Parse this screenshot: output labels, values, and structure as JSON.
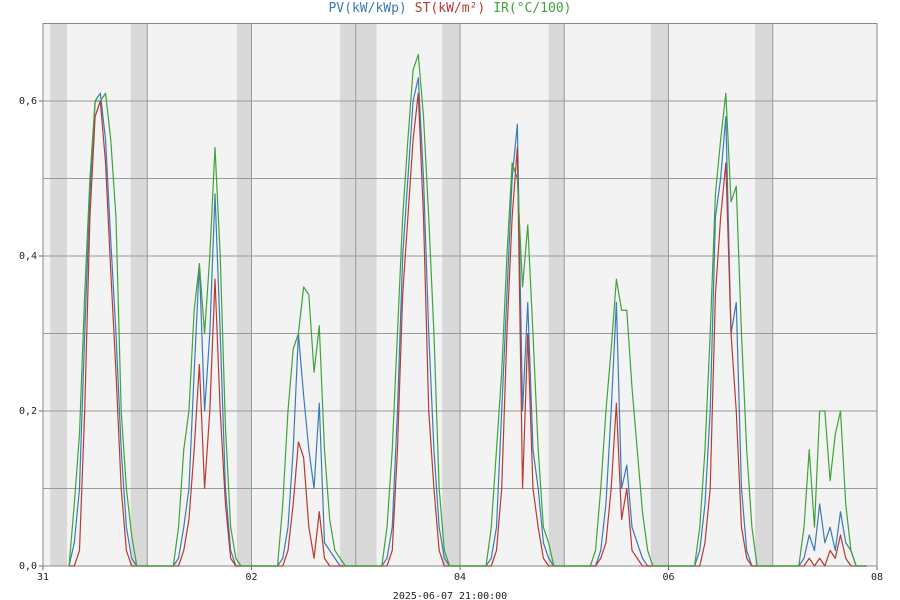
{
  "chart_data": {
    "type": "line",
    "xlabel": "2025-06-07 21:00:00",
    "x": [
      0.25,
      0.3,
      0.35,
      0.4,
      0.45,
      0.5,
      0.55,
      0.6,
      0.65,
      0.7,
      0.75,
      0.8,
      0.85,
      0.9,
      1.25,
      1.3,
      1.35,
      1.4,
      1.45,
      1.5,
      1.55,
      1.6,
      1.65,
      1.7,
      1.75,
      1.8,
      1.85,
      1.9,
      2.25,
      2.3,
      2.35,
      2.4,
      2.45,
      2.5,
      2.55,
      2.6,
      2.65,
      2.7,
      2.75,
      2.8,
      2.85,
      2.9,
      3.25,
      3.3,
      3.35,
      3.4,
      3.45,
      3.5,
      3.55,
      3.6,
      3.65,
      3.7,
      3.75,
      3.8,
      3.85,
      3.9,
      4.25,
      4.3,
      4.35,
      4.4,
      4.45,
      4.5,
      4.55,
      4.6,
      4.65,
      4.7,
      4.75,
      4.8,
      4.85,
      4.9,
      5.25,
      5.3,
      5.35,
      5.4,
      5.45,
      5.5,
      5.55,
      5.6,
      5.65,
      5.7,
      5.75,
      5.8,
      5.85,
      5.9,
      6.25,
      6.3,
      6.35,
      6.4,
      6.45,
      6.5,
      6.55,
      6.6,
      6.65,
      6.7,
      6.75,
      6.8,
      6.85,
      6.9,
      7.25,
      7.3,
      7.35,
      7.4,
      7.45,
      7.5,
      7.55,
      7.6,
      7.65,
      7.7,
      7.75,
      7.8,
      7.85,
      7.9
    ],
    "series": [
      {
        "name": "PV(kW/kWp)",
        "color": "#3b7bb8",
        "values": [
          0,
          0.03,
          0.1,
          0.3,
          0.48,
          0.6,
          0.61,
          0.55,
          0.42,
          0.3,
          0.15,
          0.05,
          0.01,
          0,
          0,
          0.01,
          0.05,
          0.1,
          0.25,
          0.39,
          0.2,
          0.3,
          0.48,
          0.3,
          0.1,
          0.02,
          0,
          0,
          0,
          0.01,
          0.05,
          0.15,
          0.3,
          0.22,
          0.15,
          0.1,
          0.21,
          0.03,
          0.02,
          0.01,
          0,
          0,
          0,
          0.01,
          0.05,
          0.2,
          0.4,
          0.5,
          0.6,
          0.63,
          0.5,
          0.3,
          0.15,
          0.05,
          0.01,
          0,
          0,
          0.01,
          0.05,
          0.2,
          0.35,
          0.5,
          0.57,
          0.2,
          0.34,
          0.15,
          0.1,
          0.03,
          0.01,
          0,
          0,
          0,
          0.02,
          0.08,
          0.2,
          0.34,
          0.1,
          0.13,
          0.05,
          0.03,
          0.01,
          0,
          0,
          0,
          0,
          0.02,
          0.08,
          0.2,
          0.45,
          0.5,
          0.58,
          0.3,
          0.34,
          0.1,
          0.02,
          0,
          0,
          0,
          0,
          0.01,
          0.04,
          0.02,
          0.08,
          0.03,
          0.05,
          0.02,
          0.07,
          0.03,
          0.02,
          0,
          0,
          0
        ]
      },
      {
        "name": "ST(kW/m²)",
        "color": "#b83a32",
        "values": [
          0,
          0,
          0.02,
          0.2,
          0.45,
          0.58,
          0.6,
          0.52,
          0.38,
          0.25,
          0.1,
          0.02,
          0,
          0,
          0,
          0,
          0.02,
          0.06,
          0.15,
          0.26,
          0.1,
          0.2,
          0.37,
          0.2,
          0.08,
          0.01,
          0,
          0,
          0,
          0,
          0.02,
          0.08,
          0.16,
          0.14,
          0.05,
          0.01,
          0.07,
          0.01,
          0,
          0,
          0,
          0,
          0,
          0,
          0.02,
          0.15,
          0.35,
          0.45,
          0.55,
          0.61,
          0.45,
          0.2,
          0.1,
          0.02,
          0,
          0,
          0,
          0,
          0.02,
          0.1,
          0.3,
          0.45,
          0.54,
          0.1,
          0.3,
          0.1,
          0.05,
          0.01,
          0,
          0,
          0,
          0,
          0.01,
          0.03,
          0.1,
          0.21,
          0.06,
          0.1,
          0.02,
          0.01,
          0,
          0,
          0,
          0,
          0,
          0,
          0.03,
          0.1,
          0.35,
          0.45,
          0.52,
          0.3,
          0.2,
          0.05,
          0.01,
          0,
          0,
          0,
          0,
          0,
          0.01,
          0,
          0.01,
          0,
          0.02,
          0.01,
          0.04,
          0.01,
          0,
          0,
          0,
          0
        ]
      },
      {
        "name": "IR(°C/100)",
        "color": "#3fa23a",
        "values": [
          0,
          0.08,
          0.17,
          0.35,
          0.5,
          0.6,
          0.6,
          0.61,
          0.55,
          0.45,
          0.2,
          0.1,
          0.04,
          0,
          0,
          0.05,
          0.15,
          0.2,
          0.33,
          0.39,
          0.3,
          0.4,
          0.54,
          0.4,
          0.18,
          0.05,
          0.01,
          0,
          0,
          0.08,
          0.2,
          0.28,
          0.3,
          0.36,
          0.35,
          0.25,
          0.31,
          0.15,
          0.06,
          0.02,
          0.01,
          0,
          0,
          0.05,
          0.15,
          0.3,
          0.45,
          0.55,
          0.64,
          0.66,
          0.58,
          0.45,
          0.3,
          0.1,
          0.02,
          0,
          0,
          0.05,
          0.15,
          0.25,
          0.4,
          0.52,
          0.5,
          0.36,
          0.44,
          0.3,
          0.15,
          0.05,
          0.03,
          0,
          0,
          0.02,
          0.1,
          0.2,
          0.28,
          0.37,
          0.33,
          0.33,
          0.23,
          0.15,
          0.07,
          0.02,
          0,
          0,
          0,
          0.05,
          0.15,
          0.3,
          0.48,
          0.55,
          0.61,
          0.47,
          0.49,
          0.3,
          0.15,
          0.05,
          0,
          0,
          0,
          0.05,
          0.15,
          0.05,
          0.2,
          0.2,
          0.11,
          0.17,
          0.2,
          0.08,
          0.02,
          0,
          0,
          0
        ]
      }
    ],
    "xlim": [
      0,
      8
    ],
    "xticks": [
      {
        "value": 0,
        "label": "31"
      },
      {
        "value": 2,
        "label": "02"
      },
      {
        "value": 4,
        "label": "04"
      },
      {
        "value": 6,
        "label": "06"
      },
      {
        "value": 8,
        "label": "08"
      }
    ],
    "minor_xticks": [
      1,
      3,
      5,
      7
    ],
    "ylim": [
      0,
      0.7
    ],
    "yticks": [
      {
        "value": 0,
        "label": "0,0"
      },
      {
        "value": 0.2,
        "label": "0,2"
      },
      {
        "value": 0.4,
        "label": "0,4"
      },
      {
        "value": 0.6,
        "label": "0,6"
      }
    ],
    "minor_yticks": [
      0.1,
      0.3,
      0.5
    ],
    "grid": true
  }
}
